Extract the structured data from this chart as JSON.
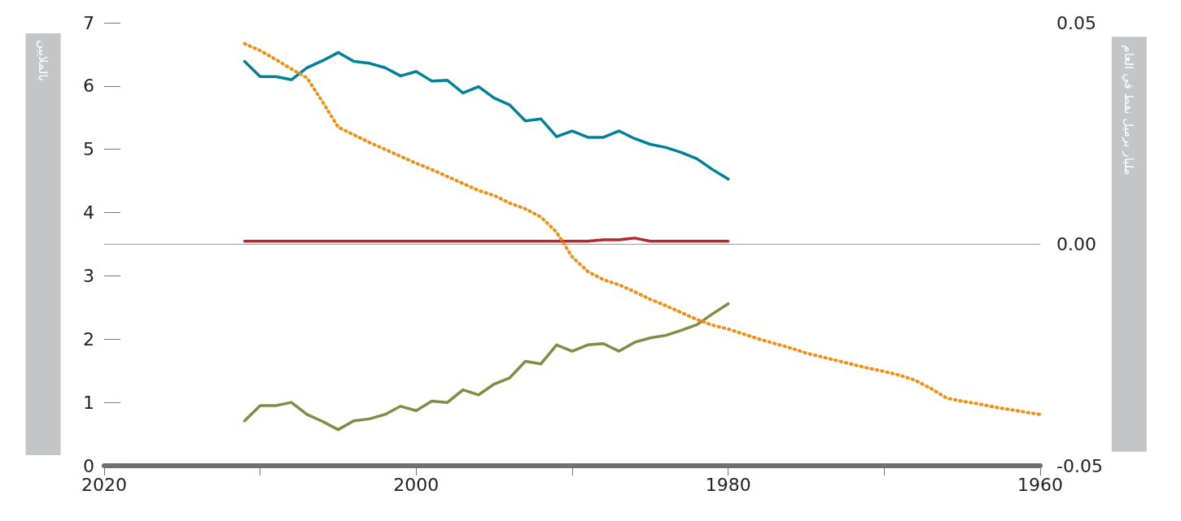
{
  "chart_data": {
    "type": "line",
    "ylabel": "بالملايين",
    "y2label": "مليار برميل نفط في العام",
    "x": [
      2011,
      2010,
      2009,
      2008,
      2007,
      2006,
      2005,
      2004,
      2003,
      2002,
      2001,
      2000,
      1999,
      1998,
      1997,
      1996,
      1995,
      1994,
      1993,
      1992,
      1991,
      1990,
      1989,
      1988,
      1987,
      1986,
      1985,
      1984,
      1983,
      1982,
      1981,
      1980
    ],
    "series": [
      {
        "color": "#00819a",
        "values": [
          6.39,
          6.15,
          6.15,
          6.1,
          6.29,
          6.4,
          6.53,
          6.39,
          6.36,
          6.29,
          6.16,
          6.23,
          6.08,
          6.09,
          5.89,
          5.99,
          5.81,
          5.7,
          5.45,
          5.48,
          5.2,
          5.29,
          5.19,
          5.19,
          5.29,
          5.17,
          5.08,
          5.03,
          4.95,
          4.85,
          4.68,
          4.53
        ]
      },
      {
        "color": "#7b8f45",
        "values": [
          0.71,
          0.95,
          0.95,
          1.0,
          0.81,
          0.7,
          0.57,
          0.71,
          0.74,
          0.81,
          0.94,
          0.87,
          1.02,
          1.0,
          1.2,
          1.12,
          1.29,
          1.39,
          1.65,
          1.61,
          1.91,
          1.81,
          1.91,
          1.93,
          1.81,
          1.95,
          2.02,
          2.06,
          2.14,
          2.23,
          2.4,
          2.56
        ]
      },
      {
        "color": "#b5282e",
        "axis": "y2",
        "values": [
          0.0007,
          0.0007,
          0.0007,
          0.0007,
          0.0007,
          0.0007,
          0.0007,
          0.0007,
          0.0007,
          0.0007,
          0.0007,
          0.0007,
          0.0007,
          0.0007,
          0.0007,
          0.0007,
          0.0007,
          0.0007,
          0.0007,
          0.0007,
          0.0007,
          0.0007,
          0.0007,
          0.001,
          0.001,
          0.0014,
          0.0007,
          0.0007,
          0.0007,
          0.0007,
          0.0007,
          0.0007
        ]
      },
      {
        "color": "#ee9216",
        "line_style": "dotted",
        "x": [
          2011,
          2010,
          2009,
          2008,
          2007,
          2006,
          2005,
          2004,
          2003,
          2002,
          2001,
          2000,
          1999,
          1998,
          1997,
          1996,
          1995,
          1994,
          1993,
          1992,
          1991,
          1990,
          1989,
          1988,
          1987,
          1986,
          1985,
          1984,
          1983,
          1982,
          1981,
          1980,
          1979,
          1978,
          1977,
          1976,
          1975,
          1974,
          1973,
          1972,
          1971,
          1970,
          1969,
          1968,
          1967,
          1966,
          1965,
          1964,
          1963,
          1962,
          1961,
          1960
        ],
        "values": [
          6.67,
          6.56,
          6.42,
          6.27,
          6.13,
          5.75,
          5.35,
          5.23,
          5.11,
          5.0,
          4.89,
          4.78,
          4.68,
          4.57,
          4.46,
          4.35,
          4.27,
          4.15,
          4.06,
          3.93,
          3.69,
          3.3,
          3.07,
          2.94,
          2.86,
          2.75,
          2.63,
          2.53,
          2.42,
          2.31,
          2.22,
          2.16,
          2.08,
          2.0,
          1.93,
          1.86,
          1.78,
          1.72,
          1.66,
          1.6,
          1.54,
          1.49,
          1.43,
          1.35,
          1.22,
          1.07,
          1.02,
          0.98,
          0.93,
          0.89,
          0.85,
          0.81
        ]
      }
    ],
    "xlim": [
      2020,
      1960
    ],
    "xticks": [
      2020,
      {
        "value": 2010,
        "label": null
      },
      2000,
      {
        "value": 1990,
        "label": null
      },
      1980,
      {
        "value": 1970,
        "label": null
      },
      1960
    ],
    "ylim": [
      0,
      7
    ],
    "yticks": [
      0,
      1,
      2,
      3,
      4,
      5,
      6,
      7
    ],
    "y2lim": [
      -0.05,
      0.05
    ],
    "y2ticks": [
      {
        "value": -0.05,
        "label": "-0.05"
      },
      {
        "value": 0,
        "label": "0.00"
      },
      {
        "value": 0.05,
        "label": "0.05"
      }
    ],
    "ref_lines": [
      {
        "axis": "y2",
        "value": 0,
        "color": "#9a9a9a"
      }
    ],
    "grid": false,
    "marker": "none",
    "line_style": "solid"
  }
}
